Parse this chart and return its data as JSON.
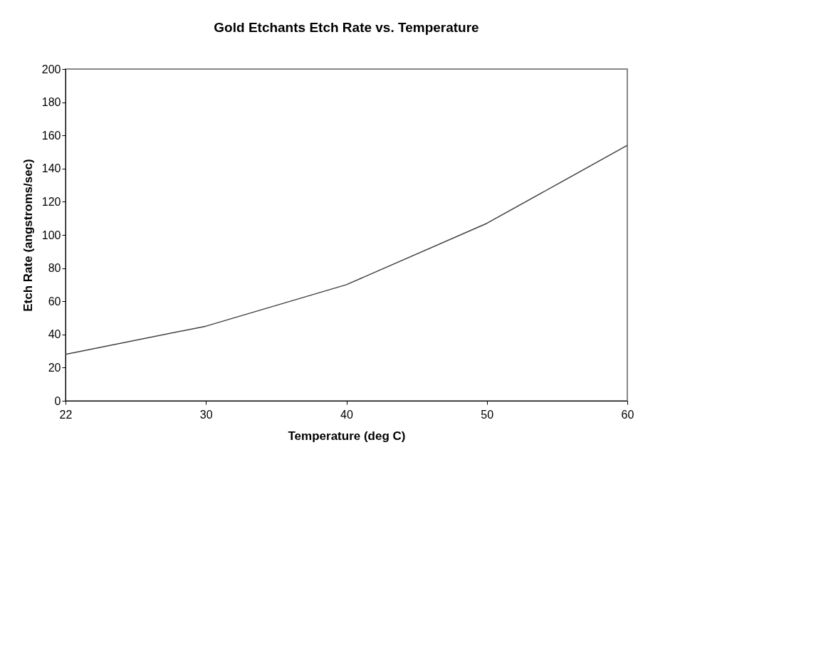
{
  "chart_data": {
    "type": "line",
    "title": "Gold Etchants Etch Rate vs. Temperature",
    "xlabel": "Temperature (deg C)",
    "ylabel": "Etch Rate (angstroms/sec)",
    "categories": [
      "22",
      "30",
      "40",
      "50",
      "60"
    ],
    "series": [
      {
        "color": "#404040",
        "values": [
          28,
          45,
          70,
          107,
          154
        ]
      }
    ],
    "ylim": [
      0,
      200
    ],
    "yticks": [
      0,
      20,
      40,
      60,
      80,
      100,
      120,
      140,
      160,
      180,
      200
    ],
    "grid": false,
    "legend": false,
    "marker": "none",
    "line_style": "solid"
  }
}
